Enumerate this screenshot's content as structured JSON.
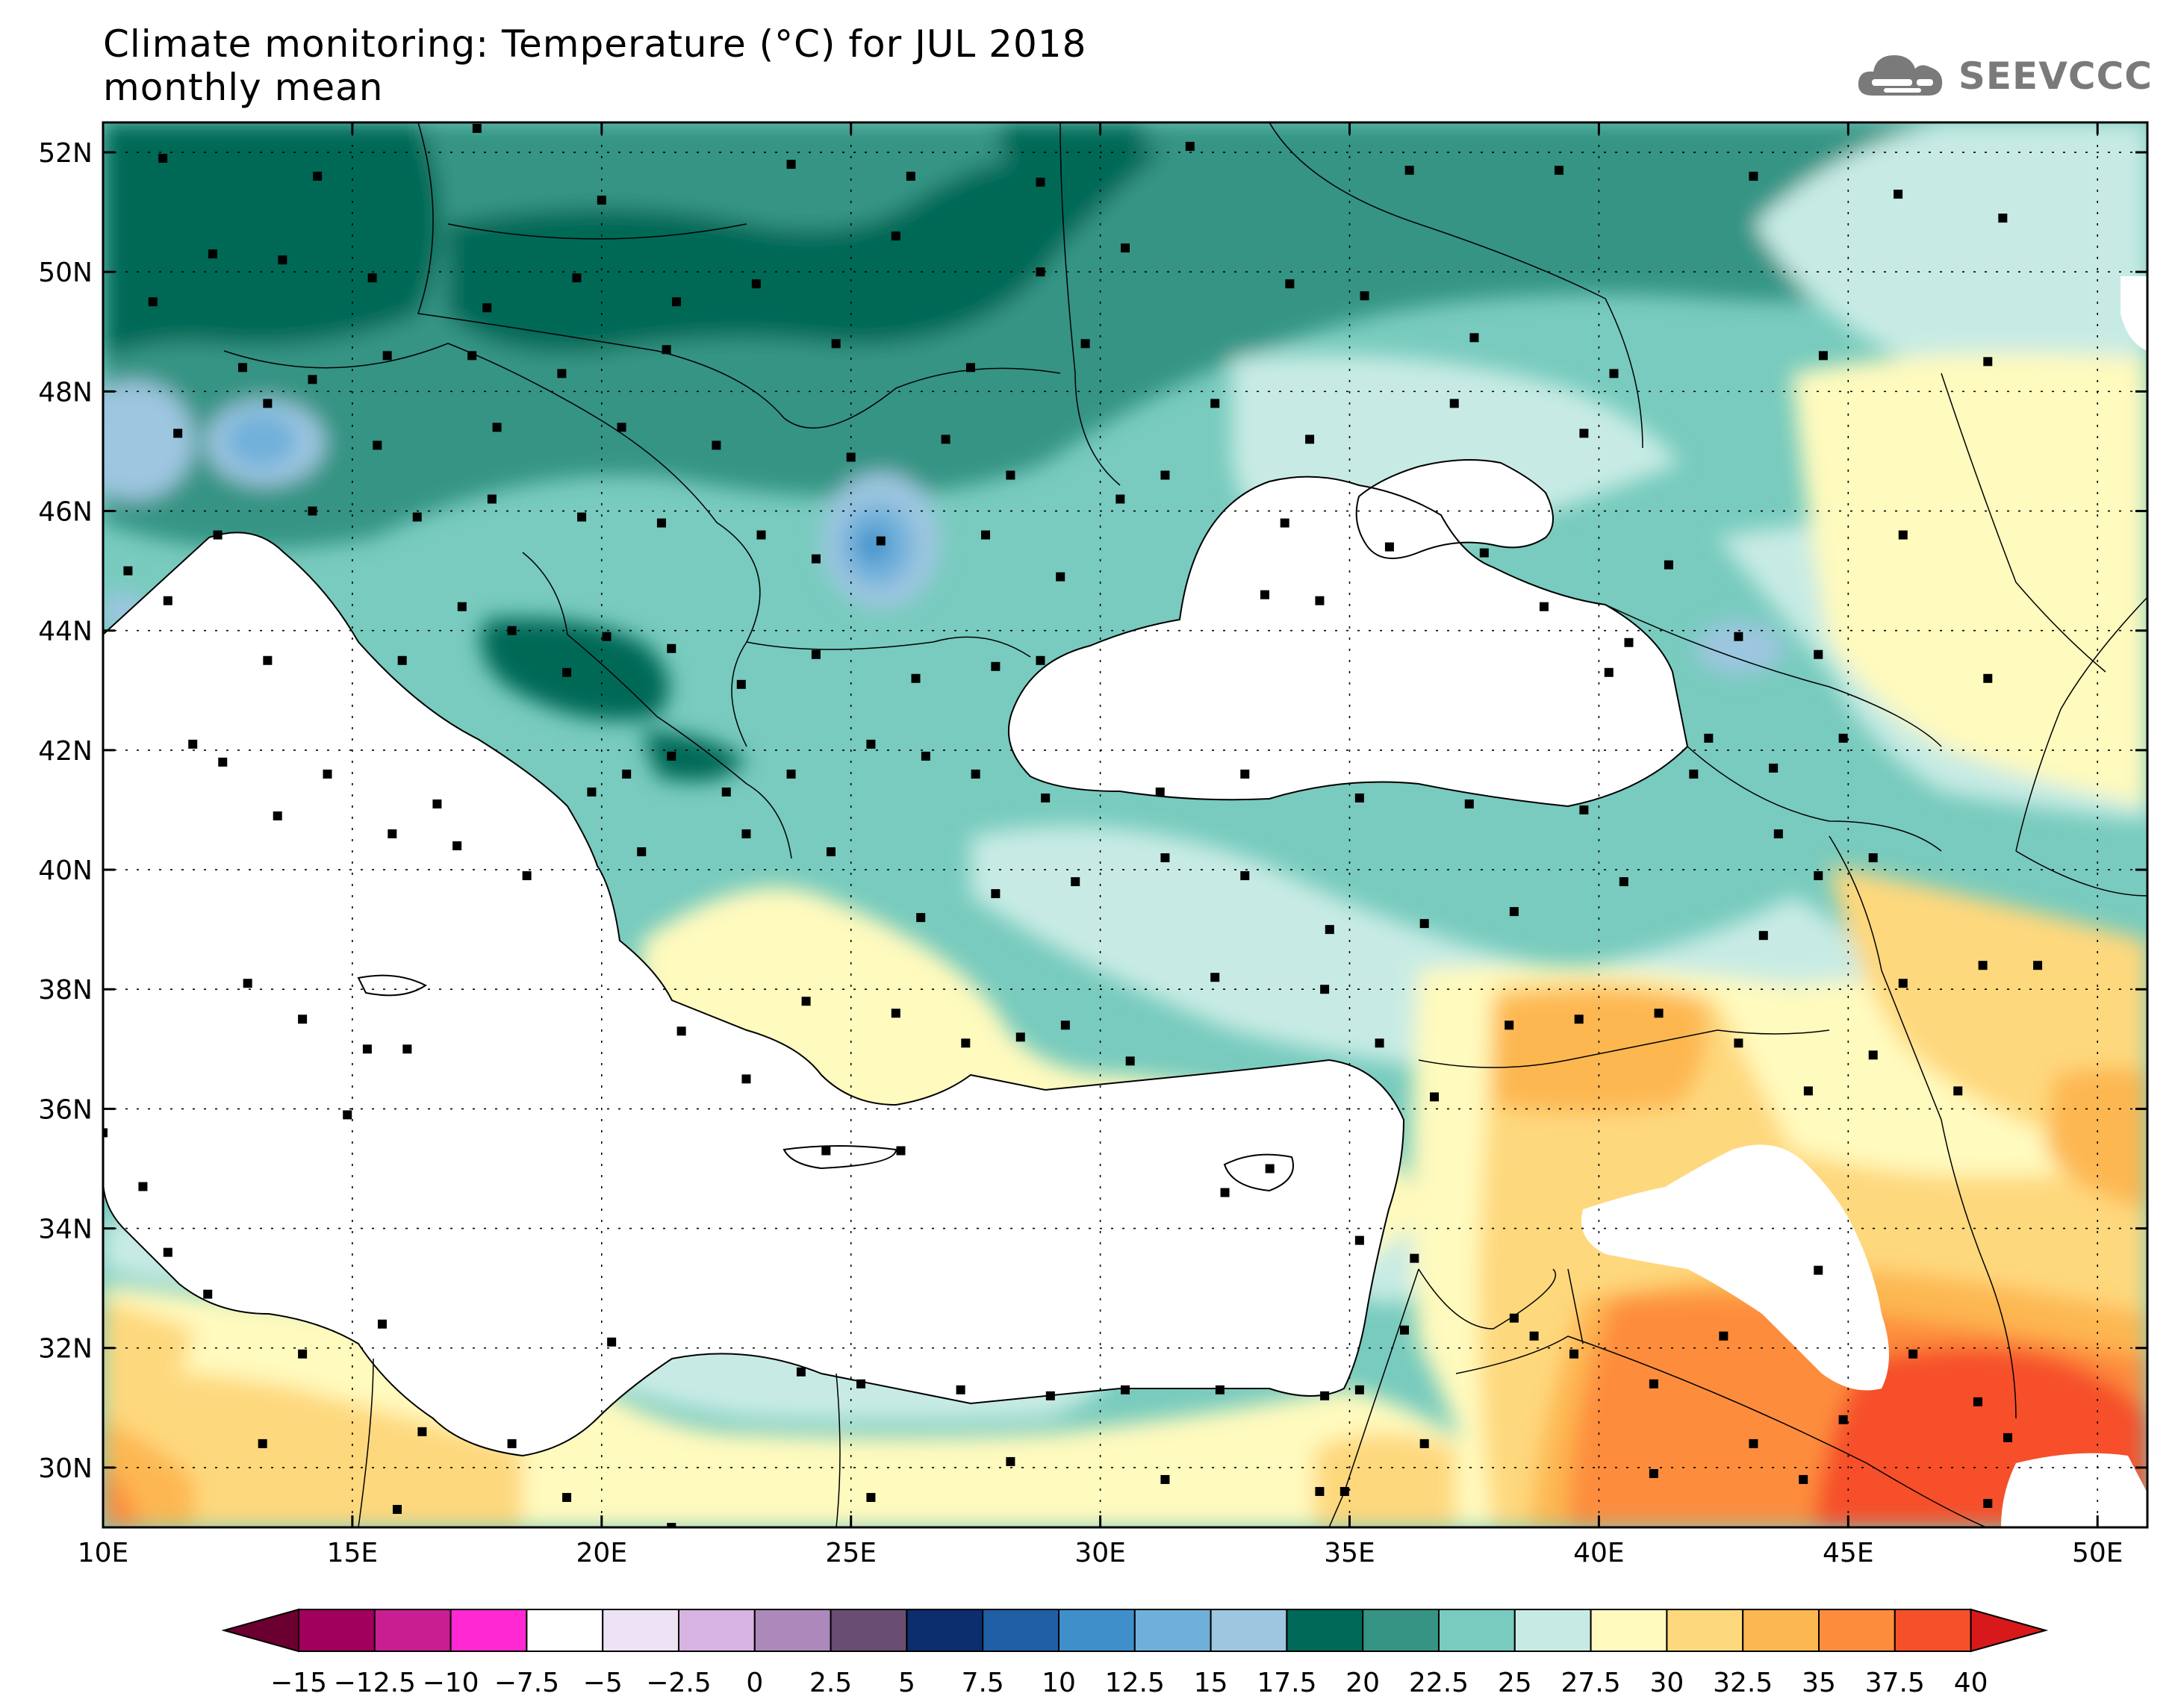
{
  "header": {
    "title_line1": "Climate monitoring: Temperature (°C) for JUL 2018",
    "title_line2": "monthly mean",
    "logo_text": "SEEVCCC",
    "logo_icon": "cloud-icon"
  },
  "map": {
    "lon_labels": [
      "10E",
      "15E",
      "20E",
      "25E",
      "30E",
      "35E",
      "40E",
      "45E",
      "50E"
    ],
    "lat_labels": [
      "52N",
      "50N",
      "48N",
      "46N",
      "44N",
      "42N",
      "40N",
      "38N",
      "36N",
      "34N",
      "32N",
      "30N"
    ],
    "lon_range": [
      10,
      51
    ],
    "lat_range": [
      29,
      52.5
    ],
    "grid": "dotted"
  },
  "colorbar": {
    "labels": [
      "−15",
      "−12.5",
      "−10",
      "−7.5",
      "−5",
      "−2.5",
      "0",
      "2.5",
      "5",
      "7.5",
      "10",
      "12.5",
      "15",
      "17.5",
      "20",
      "22.5",
      "25",
      "27.5",
      "30",
      "32.5",
      "35",
      "37.5",
      "40"
    ],
    "colors": [
      "#a1005d",
      "#c81e92",
      "#ff28d2",
      "#ffffff",
      "#eee2f5",
      "#d7b3e1",
      "#ad88ba",
      "#6a4d72",
      "#0c2d6e",
      "#1f5fa5",
      "#3f8fcb",
      "#6fb0da",
      "#9dc6e0",
      "#006957",
      "#359484",
      "#78cbbe",
      "#c7ebe4",
      "#fffabe",
      "#fed87d",
      "#fdb751",
      "#fd8d3c",
      "#f6502a"
    ],
    "end_low_color": "#6b0030",
    "end_high_color": "#d7191c"
  },
  "stations": [
    [
      11.2,
      51.9
    ],
    [
      14.3,
      51.6
    ],
    [
      17.5,
      52.4
    ],
    [
      20,
      51.2
    ],
    [
      23.8,
      51.8
    ],
    [
      26.2,
      51.6
    ],
    [
      28.8,
      51.5
    ],
    [
      31.8,
      52.1
    ],
    [
      36.2,
      51.7
    ],
    [
      39.2,
      51.7
    ],
    [
      43.1,
      51.6
    ],
    [
      46,
      51.3
    ],
    [
      48.1,
      50.9
    ],
    [
      12.2,
      50.3
    ],
    [
      13.6,
      50.2
    ],
    [
      15.4,
      49.9
    ],
    [
      17.7,
      49.4
    ],
    [
      19.5,
      49.9
    ],
    [
      21.5,
      49.5
    ],
    [
      23.1,
      49.8
    ],
    [
      25.9,
      50.6
    ],
    [
      28.8,
      50
    ],
    [
      30.5,
      50.4
    ],
    [
      33.8,
      49.8
    ],
    [
      35.3,
      49.6
    ],
    [
      37.5,
      48.9
    ],
    [
      40.3,
      48.3
    ],
    [
      44.5,
      48.6
    ],
    [
      47.8,
      48.5
    ],
    [
      11,
      49.5
    ],
    [
      12.8,
      48.4
    ],
    [
      14.2,
      48.2
    ],
    [
      15.7,
      48.6
    ],
    [
      17.4,
      48.6
    ],
    [
      19.2,
      48.3
    ],
    [
      21.3,
      48.7
    ],
    [
      24.7,
      48.8
    ],
    [
      27.4,
      48.4
    ],
    [
      29.7,
      48.8
    ],
    [
      32.3,
      47.8
    ],
    [
      34.2,
      47.2
    ],
    [
      37.1,
      47.8
    ],
    [
      39.7,
      47.3
    ],
    [
      46.1,
      45.6
    ],
    [
      11.5,
      47.3
    ],
    [
      13.3,
      47.8
    ],
    [
      15.5,
      47.1
    ],
    [
      17.9,
      47.4
    ],
    [
      20.4,
      47.4
    ],
    [
      22.3,
      47.1
    ],
    [
      25,
      46.9
    ],
    [
      26.9,
      47.2
    ],
    [
      28.2,
      46.6
    ],
    [
      30.4,
      46.2
    ],
    [
      31.3,
      46.6
    ],
    [
      33.7,
      45.8
    ],
    [
      35.8,
      45.4
    ],
    [
      37.7,
      45.3
    ],
    [
      41.4,
      45.1
    ],
    [
      10.5,
      45
    ],
    [
      12.3,
      45.6
    ],
    [
      14.2,
      46
    ],
    [
      16.3,
      45.9
    ],
    [
      17.8,
      46.2
    ],
    [
      19.6,
      45.9
    ],
    [
      21.2,
      45.8
    ],
    [
      23.2,
      45.6
    ],
    [
      24.3,
      45.2
    ],
    [
      25.6,
      45.5
    ],
    [
      27.7,
      45.6
    ],
    [
      29.2,
      44.9
    ],
    [
      33.3,
      44.6
    ],
    [
      34.4,
      44.5
    ],
    [
      38.9,
      44.4
    ],
    [
      40.6,
      43.8
    ],
    [
      42.8,
      43.9
    ],
    [
      44.4,
      43.6
    ],
    [
      47.8,
      43.2
    ],
    [
      11.3,
      44.5
    ],
    [
      13.3,
      43.5
    ],
    [
      16,
      43.5
    ],
    [
      17.2,
      44.4
    ],
    [
      18.2,
      44
    ],
    [
      19.3,
      43.3
    ],
    [
      20.1,
      43.9
    ],
    [
      21.4,
      43.7
    ],
    [
      22.8,
      43.1
    ],
    [
      24.3,
      43.6
    ],
    [
      26.3,
      43.2
    ],
    [
      27.9,
      43.4
    ],
    [
      28.8,
      43.5
    ],
    [
      40.2,
      43.3
    ],
    [
      42.2,
      42.2
    ],
    [
      43.5,
      41.7
    ],
    [
      44.9,
      42.2
    ],
    [
      11.8,
      42.1
    ],
    [
      12.4,
      41.8
    ],
    [
      14.5,
      41.6
    ],
    [
      16.7,
      41.1
    ],
    [
      19.8,
      41.3
    ],
    [
      20.5,
      41.6
    ],
    [
      21.4,
      41.9
    ],
    [
      22.5,
      41.3
    ],
    [
      23.8,
      41.6
    ],
    [
      25.4,
      42.1
    ],
    [
      26.5,
      41.9
    ],
    [
      27.5,
      41.6
    ],
    [
      28.9,
      41.2
    ],
    [
      31.2,
      41.3
    ],
    [
      32.9,
      41.6
    ],
    [
      35.2,
      41.2
    ],
    [
      37.4,
      41.1
    ],
    [
      39.7,
      41
    ],
    [
      41.9,
      41.6
    ],
    [
      43.6,
      40.6
    ],
    [
      45.5,
      40.2
    ],
    [
      13.5,
      40.9
    ],
    [
      15.8,
      40.6
    ],
    [
      17.1,
      40.4
    ],
    [
      18.5,
      39.9
    ],
    [
      20.8,
      40.3
    ],
    [
      22.9,
      40.6
    ],
    [
      24.6,
      40.3
    ],
    [
      26.4,
      39.2
    ],
    [
      27.9,
      39.6
    ],
    [
      29.5,
      39.8
    ],
    [
      31.3,
      40.2
    ],
    [
      32.9,
      39.9
    ],
    [
      34.6,
      39
    ],
    [
      36.5,
      39.1
    ],
    [
      38.3,
      39.3
    ],
    [
      40.5,
      39.8
    ],
    [
      43.3,
      38.9
    ],
    [
      44.4,
      39.9
    ],
    [
      46.1,
      38.1
    ],
    [
      47.7,
      38.4
    ],
    [
      48.8,
      38.4
    ],
    [
      12.9,
      38.1
    ],
    [
      14,
      37.5
    ],
    [
      15.3,
      37
    ],
    [
      16.1,
      37
    ],
    [
      21.6,
      37.3
    ],
    [
      22.9,
      36.5
    ],
    [
      24.1,
      37.8
    ],
    [
      25.9,
      37.6
    ],
    [
      27.3,
      37.1
    ],
    [
      28.4,
      37.2
    ],
    [
      29.3,
      37.4
    ],
    [
      30.6,
      36.8
    ],
    [
      32.3,
      38.2
    ],
    [
      34.5,
      38
    ],
    [
      35.6,
      37.1
    ],
    [
      36.7,
      36.2
    ],
    [
      38.2,
      37.4
    ],
    [
      39.6,
      37.5
    ],
    [
      41.2,
      37.6
    ],
    [
      42.8,
      37.1
    ],
    [
      44.2,
      36.3
    ],
    [
      45.5,
      36.9
    ],
    [
      47.2,
      36.3
    ],
    [
      10,
      35.6
    ],
    [
      10.8,
      34.7
    ],
    [
      14.9,
      35.9
    ],
    [
      24.5,
      35.3
    ],
    [
      26,
      35.3
    ],
    [
      32.5,
      34.6
    ],
    [
      33.4,
      35
    ],
    [
      35.2,
      33.8
    ],
    [
      36.3,
      33.5
    ],
    [
      38.3,
      32.5
    ],
    [
      39.5,
      31.9
    ],
    [
      42.5,
      32.2
    ],
    [
      44.4,
      33.3
    ],
    [
      46.3,
      31.9
    ],
    [
      47.6,
      31.1
    ],
    [
      48.2,
      30.5
    ],
    [
      11.3,
      33.6
    ],
    [
      12.1,
      32.9
    ],
    [
      14,
      31.9
    ],
    [
      15.6,
      32.4
    ],
    [
      16.4,
      30.6
    ],
    [
      18.2,
      30.4
    ],
    [
      20.2,
      32.1
    ],
    [
      24,
      31.6
    ],
    [
      25.2,
      31.4
    ],
    [
      27.2,
      31.3
    ],
    [
      29,
      31.2
    ],
    [
      30.5,
      31.3
    ],
    [
      32.4,
      31.3
    ],
    [
      34.5,
      31.2
    ],
    [
      34.9,
      29.6
    ],
    [
      35.2,
      31.3
    ],
    [
      36.1,
      32.3
    ],
    [
      36.5,
      30.4
    ],
    [
      38.7,
      32.2
    ],
    [
      41.1,
      31.4
    ],
    [
      43.1,
      30.4
    ],
    [
      44.9,
      30.8
    ],
    [
      13.2,
      30.4
    ],
    [
      15.9,
      29.3
    ],
    [
      19.3,
      29.5
    ],
    [
      21.4,
      29
    ],
    [
      25.4,
      29.5
    ],
    [
      28.2,
      30.1
    ],
    [
      31.3,
      29.8
    ],
    [
      34.4,
      29.6
    ],
    [
      41.1,
      29.9
    ],
    [
      44.1,
      29.8
    ],
    [
      47.8,
      29.4
    ]
  ]
}
